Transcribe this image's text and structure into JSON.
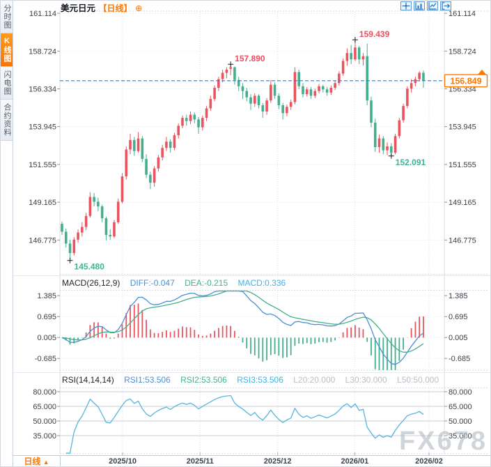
{
  "sidebar": {
    "items": [
      {
        "id": "time-chart",
        "label": "分时图",
        "active": false
      },
      {
        "id": "kline-chart",
        "label": "K线图",
        "active": true
      },
      {
        "id": "flash-chart",
        "label": "闪电图",
        "active": false
      },
      {
        "id": "contract-info",
        "label": "合约资料",
        "active": false
      }
    ]
  },
  "header": {
    "title": "美元日元",
    "period_badge": "【日线】",
    "add_icon": "⊕"
  },
  "toolbar": {
    "icons": [
      "crosshair-icon",
      "axis-scale-icon",
      "trend-edit-icon",
      "exit-icon"
    ]
  },
  "colors": {
    "up": "#e9545f",
    "down": "#43af8e",
    "accent_orange": "#ff7800",
    "price_line_blue": "#1f7fe0"
  },
  "main_chart": {
    "y_axis": [
      {
        "v": 161.114,
        "label": "161.114"
      },
      {
        "v": 158.724,
        "label": "158.724"
      },
      {
        "v": 156.334,
        "label": "156.334"
      },
      {
        "v": 153.945,
        "label": "153.945"
      },
      {
        "v": 151.555,
        "label": "151.555"
      },
      {
        "v": 149.165,
        "label": "149.165"
      },
      {
        "v": 146.775,
        "label": "146.775"
      }
    ],
    "price_line": {
      "value": 156.849,
      "label": "156.849"
    },
    "annotations": [
      {
        "text": "157.890",
        "type": "high",
        "index": 42,
        "color": "#ef4e5e"
      },
      {
        "text": "159.439",
        "type": "high",
        "index": 73,
        "color": "#ef4e5e"
      },
      {
        "text": "152.091",
        "type": "low",
        "index": 82,
        "color": "#3db596"
      },
      {
        "text": "145.480",
        "type": "low",
        "index": 2,
        "color": "#3db596"
      }
    ]
  },
  "chart_data": {
    "type": "candlestick",
    "symbol": "美元日元",
    "timeframe": "日线",
    "x_axis": {
      "ticks": [
        {
          "label": "2025/10",
          "i": 15.1
        },
        {
          "label": "2025/11",
          "i": 34.4
        },
        {
          "label": "2025/12",
          "i": 53.7
        },
        {
          "label": "2026/01",
          "i": 72.9
        },
        {
          "label": "2026/02",
          "i": 91.4
        }
      ]
    },
    "candles": [
      [
        147.8,
        147.95,
        147.1,
        147.3
      ],
      [
        147.3,
        147.5,
        146.3,
        146.55
      ],
      [
        146.55,
        146.8,
        145.48,
        145.95
      ],
      [
        145.95,
        146.95,
        145.8,
        146.8
      ],
      [
        146.8,
        147.45,
        146.6,
        147.25
      ],
      [
        147.25,
        147.9,
        147.0,
        147.6
      ],
      [
        147.6,
        148.5,
        147.4,
        148.3
      ],
      [
        148.3,
        149.8,
        148.2,
        149.5
      ],
      [
        149.5,
        149.75,
        148.9,
        149.2
      ],
      [
        149.2,
        149.45,
        148.6,
        148.9
      ],
      [
        148.9,
        149.0,
        147.9,
        148.15
      ],
      [
        148.15,
        148.25,
        146.75,
        147.1
      ],
      [
        147.1,
        147.45,
        146.8,
        147.0
      ],
      [
        147.0,
        148.05,
        146.9,
        147.9
      ],
      [
        147.9,
        149.4,
        147.8,
        149.2
      ],
      [
        149.2,
        151.0,
        149.1,
        150.8
      ],
      [
        150.8,
        152.7,
        150.6,
        152.5
      ],
      [
        152.5,
        153.5,
        152.2,
        153.1
      ],
      [
        153.1,
        153.3,
        152.1,
        152.4
      ],
      [
        152.4,
        153.6,
        152.3,
        153.2
      ],
      [
        153.2,
        153.35,
        151.7,
        151.9
      ],
      [
        151.9,
        152.2,
        150.7,
        150.9
      ],
      [
        150.9,
        151.1,
        150.0,
        150.4
      ],
      [
        150.4,
        151.45,
        150.15,
        151.3
      ],
      [
        151.3,
        152.15,
        151.1,
        152.0
      ],
      [
        152.0,
        152.8,
        151.8,
        152.6
      ],
      [
        152.6,
        153.3,
        152.4,
        153.0
      ],
      [
        153.0,
        153.15,
        152.3,
        152.6
      ],
      [
        152.6,
        153.55,
        152.45,
        153.4
      ],
      [
        153.4,
        154.15,
        153.2,
        154.0
      ],
      [
        154.0,
        154.65,
        153.85,
        154.5
      ],
      [
        154.5,
        154.7,
        154.0,
        154.3
      ],
      [
        154.3,
        154.9,
        154.1,
        154.7
      ],
      [
        154.7,
        154.85,
        154.15,
        154.4
      ],
      [
        154.4,
        154.55,
        153.5,
        153.9
      ],
      [
        153.9,
        154.65,
        153.7,
        154.5
      ],
      [
        154.5,
        155.25,
        154.3,
        155.1
      ],
      [
        155.1,
        155.9,
        154.95,
        155.7
      ],
      [
        155.7,
        156.55,
        155.55,
        156.4
      ],
      [
        156.4,
        157.1,
        156.2,
        156.95
      ],
      [
        156.95,
        157.55,
        156.75,
        157.35
      ],
      [
        157.35,
        157.7,
        157.0,
        157.55
      ],
      [
        157.6,
        157.89,
        157.2,
        157.7
      ],
      [
        157.7,
        157.75,
        156.6,
        156.9
      ],
      [
        156.9,
        157.1,
        156.2,
        156.5
      ],
      [
        156.5,
        156.7,
        155.7,
        156.2
      ],
      [
        156.2,
        156.4,
        155.55,
        155.8
      ],
      [
        155.8,
        156.0,
        155.0,
        155.4
      ],
      [
        155.4,
        156.05,
        155.2,
        155.9
      ],
      [
        155.9,
        156.0,
        155.1,
        155.3
      ],
      [
        155.3,
        155.45,
        154.5,
        154.9
      ],
      [
        154.9,
        155.75,
        154.7,
        155.6
      ],
      [
        155.6,
        156.9,
        155.45,
        156.6
      ],
      [
        156.6,
        156.75,
        155.7,
        155.9
      ],
      [
        155.9,
        156.05,
        155.05,
        155.3
      ],
      [
        155.3,
        155.45,
        154.4,
        154.8
      ],
      [
        154.8,
        155.35,
        154.6,
        155.2
      ],
      [
        155.2,
        155.65,
        155.0,
        155.5
      ],
      [
        155.5,
        157.7,
        155.35,
        157.4
      ],
      [
        157.4,
        157.55,
        156.3,
        156.5
      ],
      [
        156.5,
        156.7,
        155.8,
        156.0
      ],
      [
        156.0,
        156.45,
        155.85,
        156.3
      ],
      [
        156.3,
        156.45,
        155.7,
        155.9
      ],
      [
        155.9,
        156.35,
        155.75,
        156.2
      ],
      [
        156.2,
        156.65,
        156.05,
        156.5
      ],
      [
        156.5,
        156.6,
        156.1,
        156.3
      ],
      [
        156.3,
        156.45,
        155.9,
        156.1
      ],
      [
        156.1,
        156.55,
        155.95,
        156.4
      ],
      [
        156.4,
        156.85,
        156.25,
        156.7
      ],
      [
        156.7,
        157.45,
        156.55,
        157.3
      ],
      [
        157.3,
        158.25,
        157.15,
        158.1
      ],
      [
        158.1,
        158.9,
        157.8,
        158.6
      ],
      [
        158.6,
        159.1,
        157.9,
        158.2
      ],
      [
        158.2,
        159.439,
        158.1,
        158.95
      ],
      [
        158.95,
        159.05,
        157.9,
        158.2
      ],
      [
        158.2,
        158.6,
        157.8,
        158.4
      ],
      [
        158.4,
        159.2,
        155.3,
        155.6
      ],
      [
        155.6,
        155.85,
        153.9,
        154.2
      ],
      [
        154.2,
        154.45,
        152.35,
        152.65
      ],
      [
        152.65,
        153.45,
        152.3,
        153.2
      ],
      [
        153.2,
        153.35,
        152.2,
        152.45
      ],
      [
        152.45,
        152.95,
        152.15,
        152.7
      ],
      [
        152.7,
        152.9,
        152.091,
        152.3
      ],
      [
        152.3,
        153.5,
        152.2,
        153.35
      ],
      [
        153.35,
        154.5,
        153.2,
        154.35
      ],
      [
        154.35,
        155.4,
        154.2,
        155.25
      ],
      [
        155.25,
        156.5,
        155.1,
        156.35
      ],
      [
        156.35,
        156.95,
        156.1,
        156.7
      ],
      [
        156.7,
        157.1,
        156.5,
        156.95
      ],
      [
        156.95,
        157.45,
        156.8,
        157.35
      ],
      [
        157.35,
        157.5,
        156.4,
        156.849
      ]
    ],
    "macd": {
      "title": "MACD(26,12,9)",
      "params": [
        26,
        12,
        9
      ],
      "items": [
        {
          "label": "DIFF:-0.047",
          "color": "#4a8fd4"
        },
        {
          "label": "DEA:-0.215",
          "color": "#44b08a"
        },
        {
          "label": "MACD:0.336",
          "color": "#3fb3e3"
        }
      ],
      "axis": [
        {
          "v": 1.385,
          "label": "1.385"
        },
        {
          "v": 0.695,
          "label": "0.695"
        },
        {
          "v": 0.005,
          "label": "0.005"
        },
        {
          "v": -0.685,
          "label": "-0.685"
        }
      ]
    },
    "rsi": {
      "title": "RSI(14,14,14)",
      "params": [
        14,
        14,
        14
      ],
      "items": [
        {
          "label": "RSI1:53.506",
          "color": "#4a8fd4"
        },
        {
          "label": "RSI2:53.506",
          "color": "#44b08a"
        },
        {
          "label": "RSI3:53.506",
          "color": "#3fb3e3"
        }
      ],
      "levels": [
        {
          "label": "L20:20.000",
          "color": "#b9bfc6"
        },
        {
          "label": "L30:30.000",
          "color": "#b9bfc6"
        },
        {
          "label": "L50:50.000",
          "color": "#b9bfc6"
        }
      ],
      "axis": [
        {
          "v": 80,
          "label": "80.000"
        },
        {
          "v": 65,
          "label": "65.000"
        },
        {
          "v": 50,
          "label": "50.000"
        },
        {
          "v": 35,
          "label": "35.000"
        }
      ]
    }
  },
  "bottom_bar": {
    "period": "日线",
    "arrow": "▲"
  },
  "watermark": "FX678"
}
